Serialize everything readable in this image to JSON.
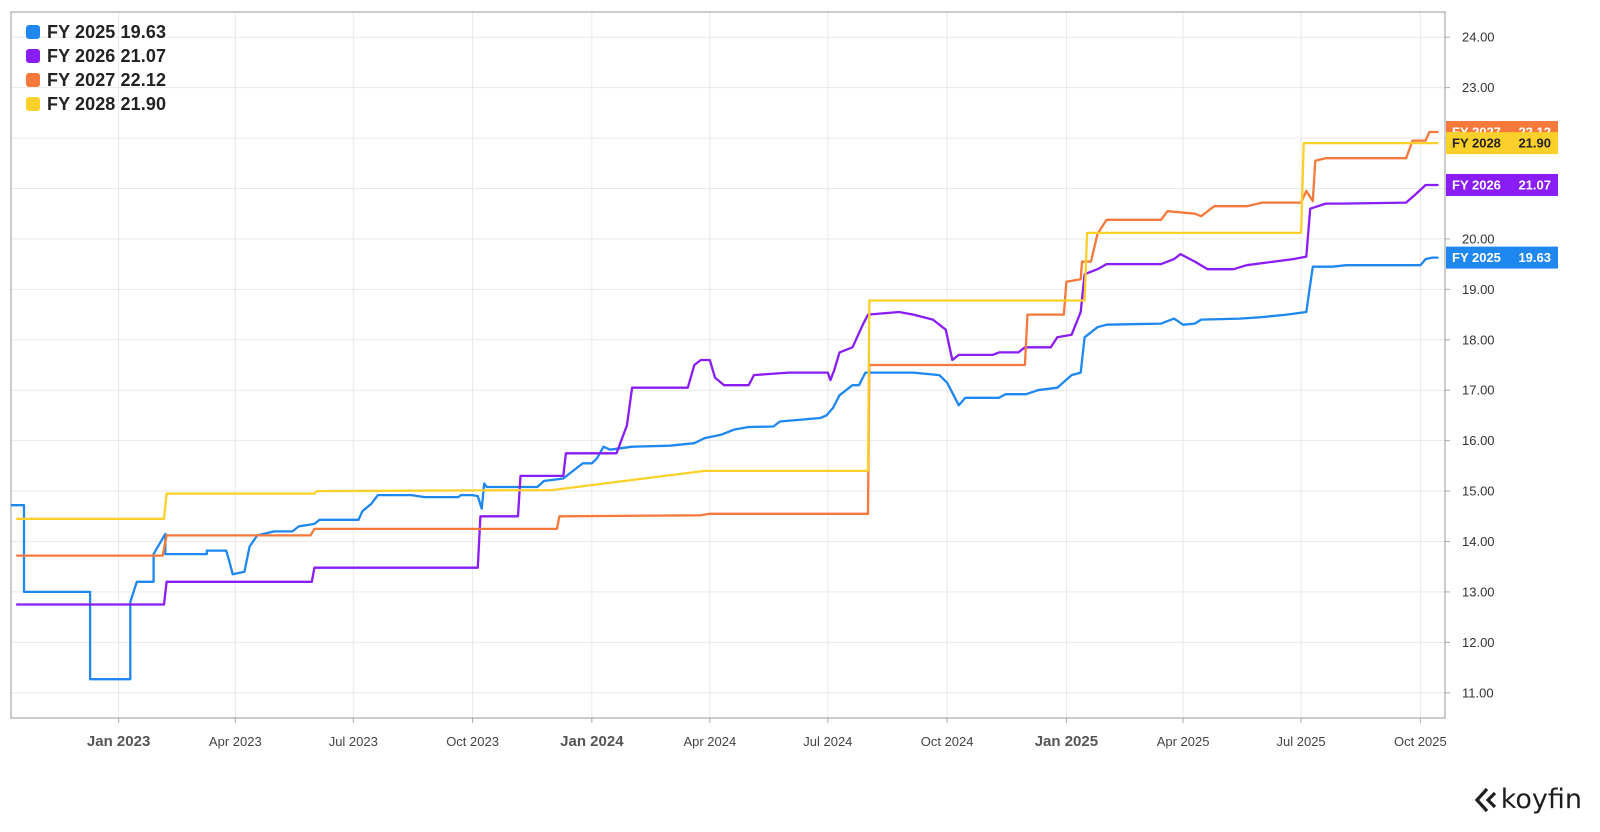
{
  "legend": [
    {
      "label": "FY 2025 19.63",
      "color": "#1f87f0"
    },
    {
      "label": "FY 2026 21.07",
      "color": "#8a1cf5"
    },
    {
      "label": "FY 2027 22.12",
      "color": "#f5793b"
    },
    {
      "label": "FY 2028 21.90",
      "color": "#fcd02b"
    }
  ],
  "logo": {
    "text": "koyfin"
  },
  "chart_data": {
    "type": "line",
    "title": "",
    "xlabel": "",
    "ylabel": "",
    "x_axis": "date",
    "xlim": [
      "2022-10-10",
      "2025-10-20"
    ],
    "ylim": [
      10.5,
      24.5
    ],
    "y_ticks": [
      "11.00",
      "12.00",
      "13.00",
      "14.00",
      "15.00",
      "16.00",
      "17.00",
      "18.00",
      "19.00",
      "20.00",
      "21.00",
      "22.00",
      "23.00",
      "24.00"
    ],
    "x_ticks": [
      {
        "date": "2023-01-01",
        "label": "Jan 2023",
        "major": true
      },
      {
        "date": "2023-04-01",
        "label": "Apr 2023",
        "major": false
      },
      {
        "date": "2023-07-01",
        "label": "Jul 2023",
        "major": false
      },
      {
        "date": "2023-10-01",
        "label": "Oct 2023",
        "major": false
      },
      {
        "date": "2024-01-01",
        "label": "Jan 2024",
        "major": true
      },
      {
        "date": "2024-04-01",
        "label": "Apr 2024",
        "major": false
      },
      {
        "date": "2024-07-01",
        "label": "Jul 2024",
        "major": false
      },
      {
        "date": "2024-10-01",
        "label": "Oct 2024",
        "major": false
      },
      {
        "date": "2025-01-01",
        "label": "Jan 2025",
        "major": true
      },
      {
        "date": "2025-04-01",
        "label": "Apr 2025",
        "major": false
      },
      {
        "date": "2025-07-01",
        "label": "Jul 2025",
        "major": false
      },
      {
        "date": "2025-10-01",
        "label": "Oct 2025",
        "major": false
      }
    ],
    "grid": true,
    "legend_position": "top-left",
    "series": [
      {
        "name": "FY 2025",
        "color": "#1f87f0",
        "last_label": "19.63",
        "points": [
          [
            "2022-10-10",
            14.72
          ],
          [
            "2022-10-20",
            14.72
          ],
          [
            "2022-10-20",
            13.0
          ],
          [
            "2022-12-10",
            13.0
          ],
          [
            "2022-12-10",
            11.27
          ],
          [
            "2023-01-10",
            11.27
          ],
          [
            "2023-01-10",
            12.8
          ],
          [
            "2023-01-15",
            13.2
          ],
          [
            "2023-01-28",
            13.2
          ],
          [
            "2023-01-28",
            13.75
          ],
          [
            "2023-02-06",
            14.15
          ],
          [
            "2023-02-06",
            13.75
          ],
          [
            "2023-03-10",
            13.75
          ],
          [
            "2023-03-10",
            13.82
          ],
          [
            "2023-03-25",
            13.82
          ],
          [
            "2023-03-28",
            13.55
          ],
          [
            "2023-03-30",
            13.35
          ],
          [
            "2023-04-08",
            13.4
          ],
          [
            "2023-04-12",
            13.9
          ],
          [
            "2023-04-18",
            14.12
          ],
          [
            "2023-05-01",
            14.2
          ],
          [
            "2023-05-15",
            14.2
          ],
          [
            "2023-05-20",
            14.3
          ],
          [
            "2023-06-01",
            14.35
          ],
          [
            "2023-06-05",
            14.43
          ],
          [
            "2023-07-05",
            14.43
          ],
          [
            "2023-07-08",
            14.6
          ],
          [
            "2023-07-15",
            14.75
          ],
          [
            "2023-07-20",
            14.92
          ],
          [
            "2023-08-15",
            14.92
          ],
          [
            "2023-08-25",
            14.88
          ],
          [
            "2023-09-20",
            14.88
          ],
          [
            "2023-09-22",
            14.92
          ],
          [
            "2023-10-01",
            14.92
          ],
          [
            "2023-10-05",
            14.9
          ],
          [
            "2023-10-08",
            14.65
          ],
          [
            "2023-10-10",
            15.15
          ],
          [
            "2023-10-12",
            15.08
          ],
          [
            "2023-11-20",
            15.08
          ],
          [
            "2023-11-25",
            15.2
          ],
          [
            "2023-12-10",
            15.25
          ],
          [
            "2023-12-15",
            15.35
          ],
          [
            "2023-12-25",
            15.55
          ],
          [
            "2024-01-01",
            15.55
          ],
          [
            "2024-01-05",
            15.65
          ],
          [
            "2024-01-10",
            15.88
          ],
          [
            "2024-01-15",
            15.82
          ],
          [
            "2024-02-01",
            15.88
          ],
          [
            "2024-03-01",
            15.9
          ],
          [
            "2024-03-20",
            15.95
          ],
          [
            "2024-03-28",
            16.05
          ],
          [
            "2024-04-10",
            16.12
          ],
          [
            "2024-04-20",
            16.22
          ],
          [
            "2024-05-01",
            16.27
          ],
          [
            "2024-05-20",
            16.28
          ],
          [
            "2024-05-25",
            16.38
          ],
          [
            "2024-06-25",
            16.45
          ],
          [
            "2024-06-30",
            16.5
          ],
          [
            "2024-07-05",
            16.65
          ],
          [
            "2024-07-10",
            16.9
          ],
          [
            "2024-07-20",
            17.1
          ],
          [
            "2024-07-25",
            17.1
          ],
          [
            "2024-07-30",
            17.35
          ],
          [
            "2024-09-05",
            17.35
          ],
          [
            "2024-09-25",
            17.3
          ],
          [
            "2024-10-01",
            17.15
          ],
          [
            "2024-10-05",
            16.95
          ],
          [
            "2024-10-10",
            16.7
          ],
          [
            "2024-10-15",
            16.85
          ],
          [
            "2024-11-10",
            16.85
          ],
          [
            "2024-11-15",
            16.92
          ],
          [
            "2024-12-01",
            16.92
          ],
          [
            "2024-12-10",
            17.0
          ],
          [
            "2024-12-25",
            17.05
          ],
          [
            "2025-01-05",
            17.3
          ],
          [
            "2025-01-12",
            17.35
          ],
          [
            "2025-01-15",
            18.05
          ],
          [
            "2025-01-25",
            18.25
          ],
          [
            "2025-02-01",
            18.3
          ],
          [
            "2025-03-15",
            18.32
          ],
          [
            "2025-03-25",
            18.42
          ],
          [
            "2025-04-01",
            18.3
          ],
          [
            "2025-04-10",
            18.32
          ],
          [
            "2025-04-15",
            18.4
          ],
          [
            "2025-05-15",
            18.42
          ],
          [
            "2025-06-01",
            18.45
          ],
          [
            "2025-06-20",
            18.5
          ],
          [
            "2025-07-05",
            18.55
          ],
          [
            "2025-07-10",
            19.45
          ],
          [
            "2025-07-25",
            19.45
          ],
          [
            "2025-08-05",
            19.48
          ],
          [
            "2025-10-01",
            19.48
          ],
          [
            "2025-10-05",
            19.6
          ],
          [
            "2025-10-10",
            19.63
          ],
          [
            "2025-10-15",
            19.63
          ]
        ]
      },
      {
        "name": "FY 2026",
        "color": "#8a1cf5",
        "last_label": "21.07",
        "points": [
          [
            "2022-10-14",
            12.75
          ],
          [
            "2023-02-05",
            12.75
          ],
          [
            "2023-02-07",
            13.2
          ],
          [
            "2023-05-30",
            13.2
          ],
          [
            "2023-06-01",
            13.48
          ],
          [
            "2023-10-05",
            13.48
          ],
          [
            "2023-10-07",
            14.5
          ],
          [
            "2023-11-05",
            14.5
          ],
          [
            "2023-11-07",
            15.3
          ],
          [
            "2023-12-10",
            15.3
          ],
          [
            "2023-12-12",
            15.75
          ],
          [
            "2024-01-20",
            15.75
          ],
          [
            "2024-01-28",
            16.3
          ],
          [
            "2024-02-01",
            17.05
          ],
          [
            "2024-03-15",
            17.05
          ],
          [
            "2024-03-20",
            17.5
          ],
          [
            "2024-03-25",
            17.6
          ],
          [
            "2024-04-01",
            17.6
          ],
          [
            "2024-04-05",
            17.25
          ],
          [
            "2024-04-12",
            17.1
          ],
          [
            "2024-05-01",
            17.1
          ],
          [
            "2024-05-05",
            17.3
          ],
          [
            "2024-06-01",
            17.35
          ],
          [
            "2024-07-01",
            17.35
          ],
          [
            "2024-07-03",
            17.2
          ],
          [
            "2024-07-06",
            17.4
          ],
          [
            "2024-07-10",
            17.75
          ],
          [
            "2024-07-20",
            17.85
          ],
          [
            "2024-07-28",
            18.3
          ],
          [
            "2024-08-01",
            18.5
          ],
          [
            "2024-08-25",
            18.55
          ],
          [
            "2024-09-05",
            18.5
          ],
          [
            "2024-09-20",
            18.4
          ],
          [
            "2024-09-30",
            18.2
          ],
          [
            "2024-10-05",
            17.6
          ],
          [
            "2024-10-10",
            17.7
          ],
          [
            "2024-11-05",
            17.7
          ],
          [
            "2024-11-10",
            17.75
          ],
          [
            "2024-11-25",
            17.75
          ],
          [
            "2024-11-30",
            17.85
          ],
          [
            "2024-12-20",
            17.85
          ],
          [
            "2024-12-25",
            18.05
          ],
          [
            "2025-01-05",
            18.1
          ],
          [
            "2025-01-12",
            18.55
          ],
          [
            "2025-01-15",
            19.3
          ],
          [
            "2025-01-25",
            19.4
          ],
          [
            "2025-02-01",
            19.5
          ],
          [
            "2025-03-15",
            19.5
          ],
          [
            "2025-03-25",
            19.6
          ],
          [
            "2025-03-30",
            19.7
          ],
          [
            "2025-04-10",
            19.55
          ],
          [
            "2025-04-20",
            19.4
          ],
          [
            "2025-05-10",
            19.4
          ],
          [
            "2025-05-20",
            19.48
          ],
          [
            "2025-06-10",
            19.55
          ],
          [
            "2025-06-25",
            19.6
          ],
          [
            "2025-07-05",
            19.65
          ],
          [
            "2025-07-08",
            20.6
          ],
          [
            "2025-07-20",
            20.7
          ],
          [
            "2025-08-01",
            20.7
          ],
          [
            "2025-09-20",
            20.72
          ],
          [
            "2025-09-28",
            20.9
          ],
          [
            "2025-10-05",
            21.07
          ],
          [
            "2025-10-15",
            21.07
          ]
        ]
      },
      {
        "name": "FY 2027",
        "color": "#f5793b",
        "last_label": "22.12",
        "points": [
          [
            "2022-10-14",
            13.72
          ],
          [
            "2023-02-04",
            13.72
          ],
          [
            "2023-02-07",
            14.12
          ],
          [
            "2023-05-29",
            14.12
          ],
          [
            "2023-06-01",
            14.25
          ],
          [
            "2023-12-05",
            14.25
          ],
          [
            "2023-12-07",
            14.5
          ],
          [
            "2024-03-25",
            14.52
          ],
          [
            "2024-04-01",
            14.55
          ],
          [
            "2024-08-01",
            14.55
          ],
          [
            "2024-08-02",
            17.5
          ],
          [
            "2024-11-30",
            17.5
          ],
          [
            "2024-12-02",
            18.5
          ],
          [
            "2024-12-30",
            18.5
          ],
          [
            "2025-01-01",
            19.15
          ],
          [
            "2025-01-12",
            19.2
          ],
          [
            "2025-01-13",
            19.55
          ],
          [
            "2025-01-20",
            19.55
          ],
          [
            "2025-01-25",
            20.1
          ],
          [
            "2025-02-01",
            20.38
          ],
          [
            "2025-03-15",
            20.38
          ],
          [
            "2025-03-20",
            20.55
          ],
          [
            "2025-04-10",
            20.5
          ],
          [
            "2025-04-15",
            20.45
          ],
          [
            "2025-04-25",
            20.65
          ],
          [
            "2025-05-20",
            20.65
          ],
          [
            "2025-06-01",
            20.72
          ],
          [
            "2025-07-01",
            20.72
          ],
          [
            "2025-07-05",
            20.95
          ],
          [
            "2025-07-10",
            20.75
          ],
          [
            "2025-07-12",
            21.55
          ],
          [
            "2025-07-20",
            21.6
          ],
          [
            "2025-09-20",
            21.6
          ],
          [
            "2025-09-25",
            21.95
          ],
          [
            "2025-10-05",
            21.95
          ],
          [
            "2025-10-08",
            22.12
          ],
          [
            "2025-10-15",
            22.12
          ]
        ]
      },
      {
        "name": "FY 2028",
        "color": "#fcd02b",
        "last_label": "21.90",
        "points": [
          [
            "2022-10-14",
            14.45
          ],
          [
            "2023-02-05",
            14.45
          ],
          [
            "2023-02-07",
            14.95
          ],
          [
            "2023-06-01",
            14.95
          ],
          [
            "2023-06-03",
            15.0
          ],
          [
            "2023-12-01",
            15.02
          ],
          [
            "2024-03-28",
            15.4
          ],
          [
            "2024-08-01",
            15.4
          ],
          [
            "2024-08-02",
            18.78
          ],
          [
            "2025-01-15",
            18.78
          ],
          [
            "2025-01-17",
            20.12
          ],
          [
            "2025-07-01",
            20.12
          ],
          [
            "2025-07-03",
            21.9
          ],
          [
            "2025-10-15",
            21.9
          ]
        ]
      }
    ]
  }
}
